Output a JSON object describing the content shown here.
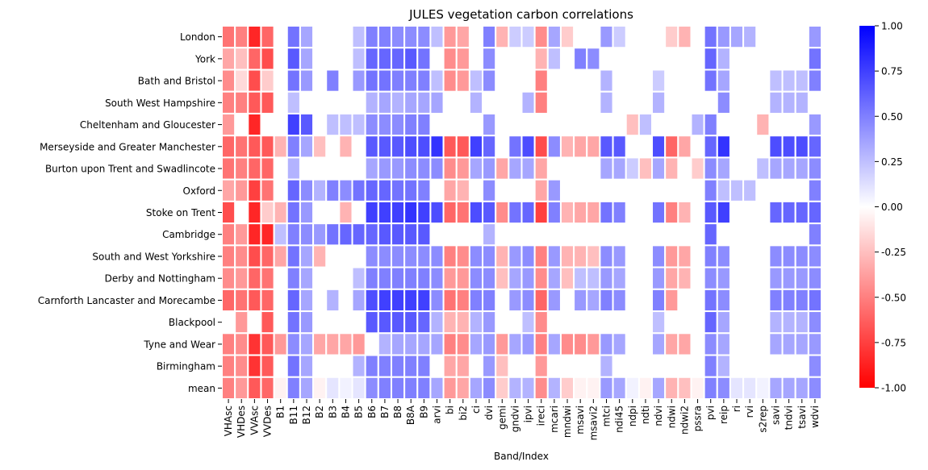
{
  "chart_data": {
    "type": "heatmap",
    "title": "JULES vegetation carbon correlations",
    "xlabel": "Band/Index",
    "ylabel": "",
    "x": [
      "VHAsc",
      "VHDes",
      "VVAsc",
      "VVDes",
      "B1",
      "B11",
      "B12",
      "B2",
      "B3",
      "B4",
      "B5",
      "B6",
      "B7",
      "B8",
      "B8A",
      "B9",
      "arvi",
      "bi",
      "bi2",
      "ci",
      "dvi",
      "gemi",
      "gndvi",
      "ipvi",
      "ireci",
      "mcari",
      "mndwi",
      "msavi",
      "msavi2",
      "mtci",
      "ndi45",
      "ndpi",
      "ndti",
      "ndvi",
      "ndwi",
      "ndwi2",
      "pssra",
      "pvi",
      "reip",
      "ri",
      "rvi",
      "s2rep",
      "savi",
      "tndvi",
      "tsavi",
      "wdvi"
    ],
    "y": [
      "London",
      "York",
      "Bath and Bristol",
      "South West Hampshire",
      "Cheltenham and Gloucester",
      "Merseyside and Greater Manchester",
      "Burton upon Trent and Swadlincote",
      "Oxford",
      "Stoke on Trent",
      "Cambridge",
      "South and West Yorkshire",
      "Derby and Nottingham",
      "Carnforth Lancaster and Morecambe",
      "Blackpool",
      "Tyne and Wear",
      "Birmingham",
      "mean"
    ],
    "colorbar": {
      "min": -1.0,
      "max": 1.0,
      "ticks": [
        "-1.00",
        "-0.75",
        "-0.50",
        "-0.25",
        "0.00",
        "0.25",
        "0.50",
        "0.75",
        "1.00"
      ],
      "colors": {
        "low": "#ff0000",
        "mid": "#ffffff",
        "high": "#0000ff"
      }
    },
    "values": [
      [
        -0.55,
        -0.5,
        -0.85,
        -0.6,
        null,
        0.55,
        0.35,
        null,
        null,
        null,
        0.25,
        0.5,
        0.5,
        0.45,
        0.45,
        0.45,
        0.25,
        -0.4,
        -0.35,
        null,
        0.5,
        -0.3,
        0.2,
        0.2,
        -0.45,
        0.35,
        -0.2,
        null,
        null,
        0.4,
        0.2,
        null,
        null,
        null,
        -0.2,
        -0.3,
        null,
        0.55,
        0.4,
        0.35,
        0.3,
        null,
        null,
        null,
        null,
        0.4
      ],
      [
        -0.35,
        -0.25,
        -0.6,
        -0.7,
        null,
        0.65,
        0.35,
        null,
        null,
        null,
        0.25,
        0.6,
        0.6,
        0.6,
        0.65,
        0.55,
        null,
        -0.45,
        -0.4,
        null,
        0.45,
        null,
        null,
        null,
        -0.3,
        0.25,
        null,
        0.5,
        0.45,
        null,
        null,
        null,
        null,
        null,
        null,
        null,
        null,
        0.6,
        0.3,
        null,
        null,
        null,
        null,
        null,
        null,
        0.55
      ],
      [
        -0.45,
        -0.15,
        -0.7,
        -0.2,
        null,
        0.55,
        0.4,
        null,
        0.5,
        null,
        0.4,
        0.55,
        0.55,
        0.5,
        0.5,
        0.5,
        0.25,
        -0.45,
        -0.4,
        0.25,
        0.45,
        null,
        null,
        null,
        -0.5,
        null,
        null,
        null,
        null,
        0.3,
        null,
        null,
        null,
        0.2,
        null,
        null,
        null,
        0.55,
        0.35,
        null,
        null,
        null,
        0.25,
        0.25,
        0.25,
        0.5
      ],
      [
        -0.5,
        -0.5,
        -0.65,
        -0.65,
        null,
        0.25,
        null,
        null,
        null,
        null,
        null,
        0.3,
        0.35,
        0.3,
        0.35,
        0.35,
        0.35,
        null,
        null,
        0.3,
        null,
        null,
        null,
        0.3,
        -0.5,
        null,
        null,
        null,
        null,
        0.3,
        null,
        null,
        null,
        0.3,
        null,
        null,
        null,
        null,
        0.45,
        null,
        null,
        null,
        0.3,
        0.3,
        0.3,
        null
      ],
      [
        -0.4,
        null,
        -0.85,
        null,
        null,
        0.75,
        0.65,
        null,
        0.25,
        0.25,
        0.25,
        0.45,
        0.45,
        0.45,
        0.5,
        0.5,
        null,
        null,
        null,
        null,
        0.4,
        null,
        null,
        null,
        null,
        null,
        null,
        null,
        null,
        null,
        null,
        -0.25,
        0.25,
        null,
        null,
        null,
        0.3,
        0.5,
        null,
        null,
        null,
        -0.3,
        null,
        null,
        null,
        0.4
      ],
      [
        -0.6,
        -0.55,
        -0.65,
        -0.65,
        -0.3,
        0.5,
        0.35,
        -0.25,
        null,
        -0.3,
        null,
        0.65,
        0.65,
        0.65,
        0.7,
        0.7,
        0.8,
        -0.65,
        -0.65,
        0.75,
        0.6,
        null,
        0.55,
        0.7,
        -0.7,
        0.45,
        -0.3,
        -0.35,
        -0.35,
        0.65,
        0.65,
        null,
        null,
        0.7,
        -0.6,
        -0.35,
        null,
        0.6,
        0.8,
        null,
        null,
        null,
        0.7,
        0.7,
        0.7,
        0.6
      ],
      [
        -0.55,
        -0.5,
        -0.6,
        -0.6,
        null,
        0.3,
        null,
        null,
        null,
        null,
        null,
        0.35,
        0.4,
        0.4,
        0.45,
        0.45,
        0.45,
        -0.45,
        -0.4,
        0.35,
        0.4,
        -0.35,
        0.35,
        0.35,
        -0.35,
        null,
        null,
        null,
        null,
        0.35,
        0.35,
        0.2,
        -0.25,
        0.35,
        -0.3,
        null,
        -0.2,
        0.45,
        0.35,
        null,
        null,
        0.25,
        0.35,
        0.35,
        0.35,
        0.45
      ],
      [
        -0.35,
        -0.4,
        -0.75,
        -0.55,
        null,
        0.6,
        0.45,
        0.3,
        0.5,
        0.45,
        0.55,
        0.6,
        0.6,
        0.55,
        0.55,
        0.5,
        null,
        -0.35,
        -0.3,
        null,
        0.45,
        null,
        null,
        null,
        -0.35,
        0.4,
        null,
        null,
        null,
        null,
        null,
        null,
        null,
        null,
        null,
        null,
        null,
        0.5,
        0.25,
        0.25,
        0.25,
        null,
        null,
        null,
        null,
        0.5
      ],
      [
        -0.7,
        null,
        -0.85,
        -0.2,
        -0.3,
        0.55,
        0.4,
        null,
        null,
        -0.3,
        null,
        0.75,
        0.75,
        0.75,
        0.8,
        0.75,
        0.7,
        -0.6,
        -0.55,
        0.7,
        0.65,
        -0.45,
        0.55,
        0.6,
        -0.75,
        0.5,
        -0.3,
        -0.35,
        -0.35,
        0.55,
        0.5,
        null,
        null,
        0.55,
        -0.5,
        -0.3,
        null,
        0.65,
        0.75,
        null,
        null,
        null,
        0.6,
        0.6,
        0.6,
        0.6
      ],
      [
        -0.5,
        -0.4,
        -0.85,
        -0.85,
        0.25,
        0.5,
        0.45,
        0.4,
        0.55,
        0.6,
        0.6,
        0.6,
        0.65,
        0.65,
        0.65,
        0.65,
        null,
        null,
        null,
        null,
        0.3,
        null,
        null,
        null,
        null,
        null,
        null,
        null,
        null,
        null,
        null,
        null,
        null,
        null,
        null,
        null,
        null,
        0.6,
        null,
        null,
        null,
        null,
        null,
        null,
        null,
        0.5
      ],
      [
        -0.5,
        -0.45,
        -0.7,
        -0.6,
        -0.35,
        0.55,
        0.35,
        -0.3,
        null,
        null,
        null,
        0.45,
        0.45,
        0.45,
        0.45,
        0.45,
        0.45,
        -0.5,
        -0.45,
        0.45,
        0.45,
        -0.3,
        0.4,
        0.45,
        -0.5,
        0.4,
        -0.3,
        -0.3,
        -0.25,
        0.45,
        0.4,
        null,
        null,
        0.45,
        -0.4,
        -0.35,
        null,
        0.5,
        0.45,
        null,
        null,
        null,
        0.45,
        0.45,
        0.45,
        0.45
      ],
      [
        -0.45,
        -0.4,
        -0.6,
        -0.55,
        null,
        0.5,
        0.35,
        null,
        null,
        null,
        0.25,
        0.5,
        0.5,
        0.5,
        0.5,
        0.5,
        0.45,
        -0.4,
        -0.4,
        0.45,
        0.45,
        -0.25,
        0.35,
        0.4,
        -0.45,
        0.35,
        -0.25,
        0.25,
        0.25,
        0.4,
        0.35,
        null,
        null,
        0.4,
        -0.35,
        -0.3,
        null,
        0.45,
        0.4,
        null,
        null,
        null,
        0.4,
        0.4,
        0.4,
        0.45
      ],
      [
        -0.6,
        -0.55,
        -0.65,
        -0.6,
        null,
        0.6,
        0.35,
        null,
        0.3,
        null,
        0.35,
        0.7,
        0.75,
        0.75,
        0.75,
        0.75,
        0.45,
        -0.55,
        -0.5,
        0.5,
        0.5,
        null,
        0.4,
        0.45,
        -0.6,
        0.4,
        null,
        0.4,
        0.35,
        0.5,
        0.45,
        null,
        null,
        0.5,
        -0.4,
        null,
        null,
        0.55,
        0.45,
        null,
        null,
        null,
        0.5,
        0.5,
        0.5,
        0.55
      ],
      [
        null,
        -0.4,
        null,
        -0.65,
        null,
        0.55,
        0.4,
        null,
        null,
        null,
        null,
        0.65,
        0.65,
        0.65,
        0.65,
        0.6,
        0.3,
        -0.3,
        -0.3,
        0.3,
        0.4,
        null,
        null,
        0.25,
        -0.45,
        null,
        null,
        null,
        null,
        null,
        null,
        null,
        null,
        0.25,
        null,
        null,
        null,
        0.6,
        0.35,
        null,
        null,
        null,
        0.3,
        0.3,
        0.3,
        0.45
      ],
      [
        -0.5,
        -0.45,
        -0.8,
        -0.65,
        -0.4,
        0.45,
        0.35,
        -0.35,
        -0.35,
        -0.35,
        -0.4,
        null,
        0.3,
        0.35,
        0.35,
        0.35,
        0.35,
        -0.5,
        -0.45,
        0.35,
        0.4,
        -0.4,
        0.35,
        0.4,
        -0.5,
        0.35,
        -0.45,
        -0.45,
        -0.4,
        0.4,
        0.35,
        null,
        null,
        0.35,
        -0.35,
        -0.35,
        null,
        0.45,
        0.35,
        null,
        null,
        null,
        0.35,
        0.35,
        0.35,
        0.4
      ],
      [
        -0.5,
        -0.45,
        -0.8,
        -0.65,
        null,
        0.55,
        0.35,
        null,
        null,
        null,
        0.3,
        0.5,
        0.5,
        0.5,
        0.5,
        0.5,
        null,
        -0.35,
        -0.35,
        null,
        0.4,
        -0.25,
        null,
        null,
        -0.4,
        null,
        null,
        null,
        null,
        0.3,
        null,
        null,
        null,
        null,
        null,
        null,
        null,
        0.5,
        0.3,
        null,
        null,
        null,
        null,
        null,
        null,
        0.45
      ],
      [
        -0.5,
        -0.4,
        -0.65,
        -0.6,
        -0.05,
        0.5,
        0.35,
        -0.05,
        0.1,
        0.05,
        0.1,
        0.45,
        0.5,
        0.5,
        0.5,
        0.5,
        0.35,
        -0.4,
        -0.35,
        0.35,
        0.45,
        -0.2,
        0.3,
        0.3,
        -0.45,
        0.3,
        -0.2,
        -0.05,
        -0.05,
        0.4,
        0.35,
        0.05,
        -0.05,
        0.35,
        -0.3,
        -0.25,
        -0.05,
        0.5,
        0.45,
        0.1,
        0.1,
        0.05,
        0.35,
        0.35,
        0.35,
        0.45
      ]
    ]
  }
}
